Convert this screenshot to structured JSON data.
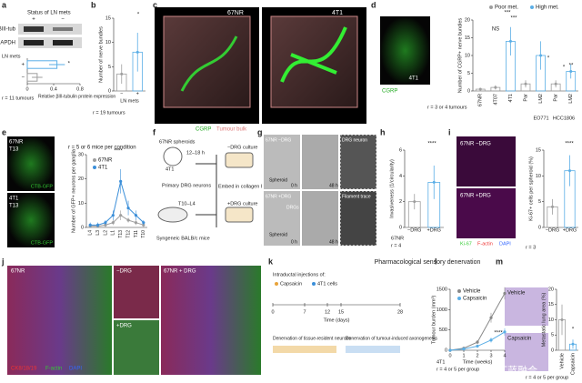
{
  "figure": {
    "panel_labels": [
      "a",
      "b",
      "c",
      "d",
      "e",
      "f",
      "g",
      "h",
      "i",
      "j",
      "k",
      "l",
      "m"
    ],
    "watermark": "头条@医学故事汇蓝融合"
  },
  "a": {
    "blot_title": "Status of LN mets",
    "lanes": [
      "+",
      "−"
    ],
    "bands": [
      "βIII-tub",
      "GAPDH"
    ],
    "n": "r = 11 tumours",
    "chart_data": {
      "type": "bar",
      "horizontal": true,
      "axis_label": "LN mets",
      "categories": [
        "+",
        "−"
      ],
      "values": [
        0.45,
        0.15
      ],
      "errors": [
        0.12,
        0.08
      ],
      "colors": [
        "#5aaee6",
        "#9e9e9e"
      ],
      "xlim": [
        0,
        0.8
      ],
      "xticks": [
        0,
        0.4,
        0.8
      ],
      "x_label": "Relative βIII-tubulin protein expression",
      "annotations": [
        "*"
      ]
    }
  },
  "b": {
    "n": "r = 19 tumours",
    "chart_data": {
      "type": "bar",
      "categories": [
        "−",
        "+"
      ],
      "values": [
        3.5,
        8
      ],
      "errors": [
        2,
        4
      ],
      "colors": [
        "#9e9e9e",
        "#5aaee6"
      ],
      "ylim": [
        0,
        15
      ],
      "yticks": [
        0,
        5,
        10,
        15
      ],
      "y_label": "Number of nerve bundles",
      "x_label": "LN mets",
      "annotations": [
        "*"
      ]
    }
  },
  "c": {
    "labels": [
      "67NR",
      "4T1"
    ],
    "legend": [
      "CGRP",
      "Tumour bulk"
    ]
  },
  "d": {
    "image_labels": [
      "CGRP",
      "4T1"
    ],
    "n": "r = 3 or 4 tumours",
    "chart_data": {
      "type": "bar",
      "legend": [
        {
          "name": "Poor met.",
          "color": "#9e9e9e"
        },
        {
          "name": "High met.",
          "color": "#5aaee6"
        }
      ],
      "categories": [
        "67NR",
        "4T07",
        "4T1",
        "Par",
        "LM2",
        "Par",
        "LM2"
      ],
      "groups": [
        "EO771",
        "HCC1806"
      ],
      "values": [
        0.5,
        1,
        14,
        2,
        10,
        2,
        5.5
      ],
      "errors": [
        0.4,
        0.6,
        4,
        1,
        4,
        1,
        2
      ],
      "colors": [
        "#9e9e9e",
        "#9e9e9e",
        "#5aaee6",
        "#9e9e9e",
        "#5aaee6",
        "#9e9e9e",
        "#5aaee6"
      ],
      "ylim": [
        0,
        20
      ],
      "yticks": [
        0,
        5,
        10,
        15,
        20
      ],
      "y_label": "Number of CGRP+ nerve bundles",
      "annotations": [
        "***",
        "***",
        "NS",
        "*",
        "*",
        "**"
      ]
    }
  },
  "e": {
    "image_labels": [
      "67NR",
      "T13",
      "CTB-GFP",
      "4T1",
      "T13",
      "CTB-GFP"
    ],
    "chart_data": {
      "type": "line",
      "title": "r = 5 or 6 mice per condition",
      "categories": [
        "L4",
        "L3",
        "L2",
        "L1",
        "T13",
        "T12",
        "T11",
        "T10"
      ],
      "series": [
        {
          "name": "67NR",
          "color": "#9e9e9e",
          "values": [
            0.5,
            0.5,
            1,
            2,
            5,
            3,
            2,
            1
          ],
          "errors": [
            0.5,
            0.5,
            1,
            1,
            2,
            1,
            1,
            1
          ]
        },
        {
          "name": "4T1",
          "color": "#3b8fd9",
          "values": [
            1,
            1,
            2,
            5,
            19,
            8,
            5,
            2
          ],
          "errors": [
            1,
            1,
            1,
            2,
            5,
            3,
            2,
            1
          ]
        }
      ],
      "ylim": [
        0,
        30
      ],
      "yticks": [
        0,
        10,
        20,
        30
      ],
      "y_label": "Number of GFP+ neurons per ganglia",
      "annotations": [
        "****"
      ]
    }
  },
  "f": {
    "labels": [
      "67NR spheroids",
      "4T1",
      "12–18 h",
      "Primary DRG neurons",
      "T10–L4",
      "Syngeneic BALB/c mice",
      "Embed in collagen I",
      "−DRG culture",
      "+DRG culture"
    ]
  },
  "g": {
    "labels": [
      "67NR −DRG",
      "Spheroid",
      "0 h",
      "48 h",
      "DRG neuron",
      "67NR +DRG",
      "DRGs",
      "Spheroid",
      "0 h",
      "48 h",
      "Filament trace"
    ]
  },
  "h": {
    "group": "67NR",
    "n": "r = 4",
    "chart_data": {
      "type": "bar",
      "categories": [
        "−DRG",
        "+DRG"
      ],
      "values": [
        2,
        3.5
      ],
      "errors": [
        0.6,
        1.3
      ],
      "colors": [
        "#9e9e9e",
        "#5aaee6"
      ],
      "ylim": [
        0,
        6
      ],
      "yticks": [
        0,
        2,
        4,
        6
      ],
      "y_label": "Invasiveness (1/circularity)",
      "annotations": [
        "****"
      ]
    }
  },
  "i": {
    "image_labels": [
      "67NR −DRG",
      "67NR +DRG",
      "Ki-67",
      "F-actin",
      "DAPI"
    ],
    "n": "r = 3",
    "chart_data": {
      "type": "bar",
      "categories": [
        "−DRG",
        "+DRG"
      ],
      "values": [
        4,
        11
      ],
      "errors": [
        1.5,
        3
      ],
      "colors": [
        "#9e9e9e",
        "#5aaee6"
      ],
      "ylim": [
        0,
        15
      ],
      "yticks": [
        0,
        5,
        10,
        15
      ],
      "y_label": "Ki-67+ cells per spheroid (%)",
      "annotations": [
        "****"
      ]
    }
  },
  "j": {
    "labels": [
      "67NR",
      "−DRG",
      "+DRG",
      "67NR + DRG",
      "CK8/18/19",
      "F-actin",
      "DAPI"
    ]
  },
  "k": {
    "title": "Pharmacological sensory denervation",
    "heading": "Intraductal injections of:",
    "legend": [
      "Capsaicin",
      "4T1 cells"
    ],
    "xlim": [
      0,
      28
    ],
    "xticks": [
      0,
      7,
      12,
      15,
      28
    ],
    "x_label": "Time (days)",
    "phases": [
      "Denervation of tissue-resident neurons",
      "Denervation of tumour-induced axonogenesis"
    ]
  },
  "l": {
    "group": "4T1",
    "n": "r = 4 or 5 per group",
    "chart_data": {
      "type": "line",
      "x": [
        0,
        1,
        2,
        3,
        4
      ],
      "xlim": [
        0,
        4
      ],
      "xticks": [
        0,
        1,
        2,
        3,
        4
      ],
      "x_label": "Time (weeks)",
      "series": [
        {
          "name": "Vehicle",
          "color": "#888888",
          "values": [
            0,
            50,
            200,
            800,
            1400
          ],
          "errors": [
            0,
            20,
            50,
            120,
            150
          ]
        },
        {
          "name": "Capsaicin",
          "color": "#5aaee6",
          "values": [
            0,
            30,
            100,
            250,
            450
          ],
          "errors": [
            0,
            15,
            30,
            60,
            90
          ]
        }
      ],
      "ylim": [
        0,
        1500
      ],
      "yticks": [
        0,
        500,
        1000,
        1500
      ],
      "y_label": "Tumour burden (mm³)",
      "annotations": [
        "****"
      ]
    }
  },
  "m": {
    "image_labels": [
      "Vehicle",
      "Capsaicin"
    ],
    "n": "r = 4 or 5 per group",
    "chart_data": {
      "type": "bar",
      "categories": [
        "Vehicle",
        "Capsaicin"
      ],
      "values": [
        10,
        2
      ],
      "errors": [
        5,
        1.5
      ],
      "colors": [
        "#9e9e9e",
        "#5aaee6"
      ],
      "ylim": [
        0,
        20
      ],
      "yticks": [
        0,
        5,
        10,
        15,
        20
      ],
      "y_label": "Metastatic lung area (%)",
      "annotations": [
        "*"
      ]
    }
  }
}
